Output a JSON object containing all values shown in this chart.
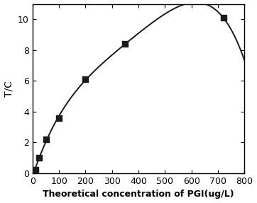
{
  "x_data": [
    10,
    25,
    50,
    100,
    200,
    350,
    720
  ],
  "y_data": [
    0.25,
    1.0,
    2.2,
    3.6,
    6.1,
    8.4,
    10.1
  ],
  "xlabel": "Theoretical concentration of PGI(ug/L)",
  "ylabel": "T/C",
  "xlim": [
    0,
    800
  ],
  "ylim": [
    0,
    11
  ],
  "xticks": [
    0,
    100,
    200,
    300,
    400,
    500,
    600,
    700,
    800
  ],
  "yticks": [
    0,
    2,
    4,
    6,
    8,
    10
  ],
  "marker": "s",
  "marker_color": "#1a1a1a",
  "marker_size": 36,
  "line_color": "#1a1a1a",
  "line_width": 1.4,
  "background_color": "#ffffff",
  "xlabel_fontsize": 9,
  "ylabel_fontsize": 10,
  "tick_fontsize": 9,
  "xlabel_bold": true,
  "all_spines": true,
  "p0_a": 11.5,
  "p0_b": 80.0,
  "p0_n": 0.75,
  "p0_c": 0.0008
}
